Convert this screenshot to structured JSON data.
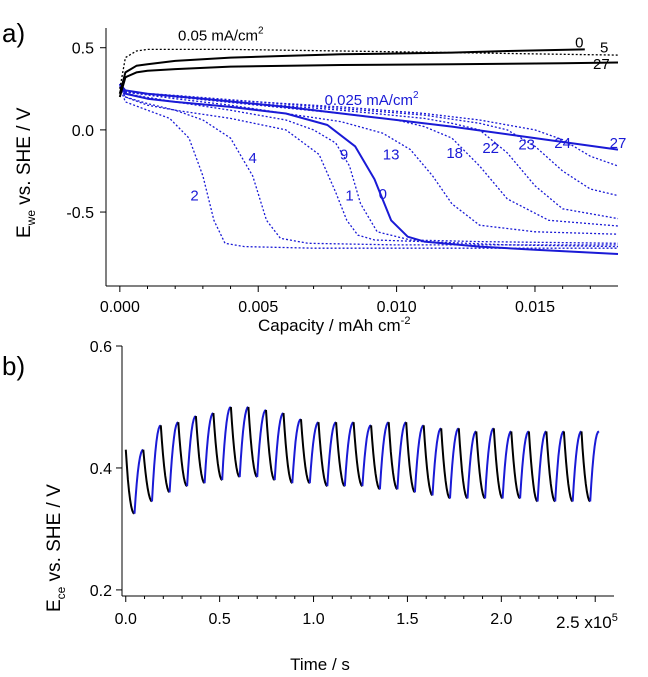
{
  "chart_data": [
    {
      "panel_label": "a)",
      "type": "line",
      "xlabel": "Capacity / mAh cm",
      "xlabel_sup": "-2",
      "ylabel_main": "E",
      "ylabel_sub": "we",
      "ylabel_rest": " vs. SHE / V",
      "xlim": [
        -0.0005,
        0.018
      ],
      "ylim": [
        -0.95,
        0.62
      ],
      "xticks": [
        0.0,
        0.005,
        0.01,
        0.015
      ],
      "xtick_labels": [
        "0.000",
        "0.005",
        "0.010",
        "0.015"
      ],
      "yticks": [
        0.5,
        0.0,
        -0.5
      ],
      "ytick_labels": [
        "0.5",
        "0.0",
        "-0.5"
      ],
      "annotations": [
        {
          "text": "0.05 mA/cm",
          "sup": "2",
          "x": 0.0021,
          "y": 0.545,
          "color": "#000000"
        },
        {
          "text": "0.025 mA/cm",
          "sup": "2",
          "x": 0.0074,
          "y": 0.15,
          "color": "#1a1ad6"
        }
      ],
      "charge_series": [
        {
          "name": "0",
          "style": "solid",
          "color": "#000000",
          "x": [
            0.0,
            0.0002,
            0.0006,
            0.001,
            0.002,
            0.004,
            0.006,
            0.008,
            0.01,
            0.012,
            0.014,
            0.0168
          ],
          "y": [
            0.22,
            0.35,
            0.39,
            0.4,
            0.42,
            0.44,
            0.45,
            0.46,
            0.465,
            0.47,
            0.48,
            0.49
          ],
          "label_x": 0.0166,
          "label_y": 0.5
        },
        {
          "name": "5",
          "style": "dotted",
          "color": "#000000",
          "x": [
            0.0,
            0.0002,
            0.0006,
            0.001,
            0.002,
            0.004,
            0.008,
            0.012,
            0.016,
            0.018
          ],
          "y": [
            0.25,
            0.44,
            0.48,
            0.49,
            0.49,
            0.49,
            0.48,
            0.47,
            0.46,
            0.455
          ],
          "label_x": 0.0175,
          "label_y": 0.47
        },
        {
          "name": "27",
          "style": "solid",
          "color": "#000000",
          "x": [
            0.0,
            0.0002,
            0.0006,
            0.001,
            0.002,
            0.004,
            0.008,
            0.012,
            0.016,
            0.018
          ],
          "y": [
            0.2,
            0.32,
            0.35,
            0.36,
            0.37,
            0.385,
            0.395,
            0.4,
            0.405,
            0.41
          ],
          "label_x": 0.0174,
          "label_y": 0.37
        }
      ],
      "discharge_series": [
        {
          "name": "0",
          "style": "solid",
          "color": "#1a1ad6",
          "x": [
            0.0,
            0.0002,
            0.001,
            0.002,
            0.004,
            0.006,
            0.0075,
            0.0085,
            0.0092,
            0.0098,
            0.0104,
            0.011,
            0.013,
            0.015,
            0.018
          ],
          "y": [
            0.28,
            0.22,
            0.19,
            0.17,
            0.14,
            0.1,
            0.03,
            -0.1,
            -0.3,
            -0.55,
            -0.65,
            -0.68,
            -0.71,
            -0.73,
            -0.755
          ],
          "label_x": 0.0095,
          "label_y": -0.42
        },
        {
          "name": "1",
          "style": "dotted",
          "color": "#1a1ad6",
          "x": [
            0.0,
            0.0002,
            0.001,
            0.002,
            0.004,
            0.006,
            0.0072,
            0.0078,
            0.0082,
            0.0086,
            0.0092,
            0.011,
            0.014,
            0.018
          ],
          "y": [
            0.27,
            0.2,
            0.15,
            0.12,
            0.07,
            0.0,
            -0.15,
            -0.38,
            -0.55,
            -0.64,
            -0.67,
            -0.68,
            -0.7,
            -0.71
          ],
          "label_x": 0.0083,
          "label_y": -0.43
        },
        {
          "name": "2",
          "style": "dotted",
          "color": "#1a1ad6",
          "x": [
            0.0,
            0.0002,
            0.001,
            0.0018,
            0.0025,
            0.003,
            0.0034,
            0.0038,
            0.0045,
            0.007,
            0.012,
            0.018
          ],
          "y": [
            0.26,
            0.17,
            0.12,
            0.07,
            -0.05,
            -0.28,
            -0.55,
            -0.69,
            -0.71,
            -0.72,
            -0.72,
            -0.72
          ],
          "label_x": 0.0027,
          "label_y": -0.43
        },
        {
          "name": "4",
          "style": "dotted",
          "color": "#1a1ad6",
          "x": [
            0.0,
            0.0002,
            0.001,
            0.002,
            0.003,
            0.004,
            0.0048,
            0.0053,
            0.0058,
            0.0068,
            0.01,
            0.018
          ],
          "y": [
            0.26,
            0.2,
            0.16,
            0.12,
            0.06,
            -0.05,
            -0.28,
            -0.55,
            -0.66,
            -0.69,
            -0.7,
            -0.7
          ],
          "label_x": 0.0048,
          "label_y": -0.2
        },
        {
          "name": "9",
          "style": "dotted",
          "color": "#1a1ad6",
          "x": [
            0.0,
            0.0002,
            0.002,
            0.004,
            0.006,
            0.007,
            0.0078,
            0.0083,
            0.0087,
            0.0093,
            0.0105,
            0.013,
            0.018
          ],
          "y": [
            0.27,
            0.22,
            0.17,
            0.12,
            0.06,
            0.0,
            -0.08,
            -0.22,
            -0.45,
            -0.62,
            -0.67,
            -0.68,
            -0.69
          ],
          "label_x": 0.0081,
          "label_y": -0.18
        },
        {
          "name": "13",
          "style": "dotted",
          "color": "#1a1ad6",
          "x": [
            0.0,
            0.0002,
            0.002,
            0.004,
            0.006,
            0.008,
            0.0095,
            0.0105,
            0.0113,
            0.012,
            0.013,
            0.015,
            0.018
          ],
          "y": [
            0.27,
            0.23,
            0.19,
            0.15,
            0.1,
            0.05,
            -0.02,
            -0.12,
            -0.28,
            -0.45,
            -0.58,
            -0.62,
            -0.635
          ],
          "label_x": 0.0098,
          "label_y": -0.18
        },
        {
          "name": "18",
          "style": "dotted",
          "color": "#1a1ad6",
          "x": [
            0.0,
            0.0002,
            0.002,
            0.005,
            0.008,
            0.01,
            0.011,
            0.012,
            0.013,
            0.014,
            0.0155,
            0.018
          ],
          "y": [
            0.27,
            0.23,
            0.2,
            0.15,
            0.1,
            0.06,
            0.02,
            -0.05,
            -0.22,
            -0.42,
            -0.55,
            -0.585
          ],
          "label_x": 0.0121,
          "label_y": -0.17
        },
        {
          "name": "22",
          "style": "dotted",
          "color": "#1a1ad6",
          "x": [
            0.0,
            0.0002,
            0.002,
            0.005,
            0.008,
            0.011,
            0.012,
            0.013,
            0.014,
            0.015,
            0.016,
            0.018
          ],
          "y": [
            0.27,
            0.23,
            0.2,
            0.16,
            0.12,
            0.07,
            0.04,
            0.0,
            -0.14,
            -0.34,
            -0.48,
            -0.54
          ],
          "label_x": 0.0134,
          "label_y": -0.14
        },
        {
          "name": "23",
          "style": "dotted",
          "color": "#1a1ad6",
          "x": [
            0.0,
            0.0002,
            0.002,
            0.005,
            0.008,
            0.011,
            0.013,
            0.014,
            0.015,
            0.016,
            0.017,
            0.018
          ],
          "y": [
            0.27,
            0.23,
            0.2,
            0.17,
            0.13,
            0.09,
            0.04,
            0.0,
            -0.1,
            -0.25,
            -0.36,
            -0.4
          ],
          "label_x": 0.0147,
          "label_y": -0.12
        },
        {
          "name": "24",
          "style": "dotted",
          "color": "#1a1ad6",
          "x": [
            0.0,
            0.0002,
            0.002,
            0.005,
            0.008,
            0.011,
            0.013,
            0.015,
            0.016,
            0.017,
            0.018
          ],
          "y": [
            0.27,
            0.23,
            0.21,
            0.17,
            0.14,
            0.1,
            0.06,
            0.0,
            -0.06,
            -0.16,
            -0.22
          ],
          "label_x": 0.016,
          "label_y": -0.11
        },
        {
          "name": "27",
          "style": "solid",
          "color": "#1a1ad6",
          "x": [
            0.0,
            0.0002,
            0.001,
            0.003,
            0.006,
            0.009,
            0.012,
            0.015,
            0.018
          ],
          "y": [
            0.28,
            0.24,
            0.22,
            0.19,
            0.14,
            0.08,
            0.02,
            -0.05,
            -0.12
          ],
          "label_x": 0.018,
          "label_y": -0.11
        }
      ]
    },
    {
      "panel_label": "b)",
      "type": "line",
      "xlabel": "Time / s",
      "ylabel_main": "E",
      "ylabel_sub": "ce",
      "ylabel_rest": " vs. SHE / V",
      "xlim": [
        -0.02,
        2.6
      ],
      "x_multiplier": "2.5 x10",
      "x_multiplier_sup": "5",
      "ylim": [
        0.19,
        0.6
      ],
      "xticks": [
        0.0,
        0.5,
        1.0,
        1.5,
        2.0
      ],
      "xtick_labels": [
        "0.0",
        "0.5",
        "1.0",
        "1.5",
        "2.0"
      ],
      "yticks": [
        0.6,
        0.4,
        0.2
      ],
      "ytick_labels": [
        "0.6",
        "0.4",
        "0.2"
      ],
      "cycles": 27,
      "t_start": 0.0,
      "t_end": 2.52,
      "charge_color": "#1a1ad6",
      "discharge_color": "#000000",
      "highs": [
        0.43,
        0.47,
        0.475,
        0.485,
        0.49,
        0.5,
        0.5,
        0.495,
        0.49,
        0.48,
        0.475,
        0.475,
        0.475,
        0.47,
        0.475,
        0.475,
        0.47,
        0.465,
        0.465,
        0.46,
        0.465,
        0.46,
        0.46,
        0.46,
        0.46,
        0.46,
        0.46
      ],
      "lows": [
        0.33,
        0.345,
        0.36,
        0.37,
        0.375,
        0.38,
        0.385,
        0.385,
        0.38,
        0.375,
        0.375,
        0.37,
        0.37,
        0.37,
        0.365,
        0.365,
        0.36,
        0.355,
        0.35,
        0.35,
        0.35,
        0.35,
        0.35,
        0.345,
        0.345,
        0.345,
        0.345
      ]
    }
  ]
}
